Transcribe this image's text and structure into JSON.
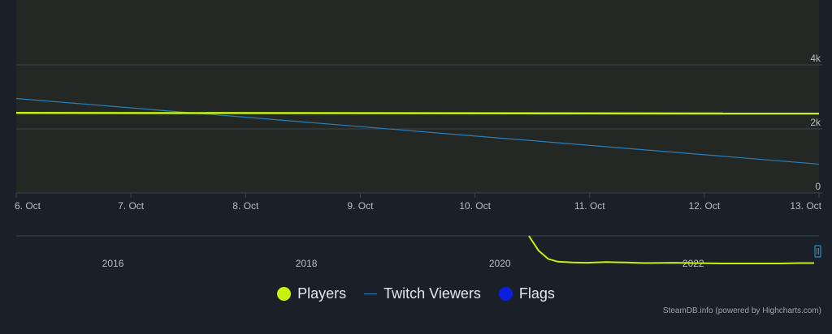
{
  "colors": {
    "background": "#1b2028",
    "plot_fill": "#232825",
    "grid": "#3a4350",
    "axis_text": "#b8bec8",
    "players": "#c6f20e",
    "twitch": "#2a7fb8",
    "flags": "#0a1fe0",
    "legend_text": "#e3e7ee",
    "credits_text": "#9aa3ae",
    "navigator_handle": "#1e8fd8"
  },
  "chart_data": [
    {
      "type": "line",
      "x": [
        "6. Oct",
        "7. Oct",
        "8. Oct",
        "9. Oct",
        "10. Oct",
        "11. Oct",
        "12. Oct",
        "13. Oct"
      ],
      "ylim": [
        0,
        4000
      ],
      "y_ticks": [
        0,
        2000,
        4000
      ],
      "y_tick_labels": [
        "0",
        "2k",
        "4k"
      ],
      "grid": true,
      "series": [
        {
          "name": "Players",
          "x_start": 0,
          "x_end": 7,
          "values_start": 2500,
          "values_end": 2480
        },
        {
          "name": "Twitch Viewers",
          "x_start": 0,
          "x_end": 7,
          "values_start": 2950,
          "values_end": 900
        }
      ]
    },
    {
      "type": "line",
      "role": "navigator",
      "x_range": [
        2015.0,
        2023.3
      ],
      "x_ticks": [
        2016,
        2018,
        2020,
        2022
      ],
      "x_tick_labels": [
        "2016",
        "2018",
        "2020",
        "2022"
      ],
      "series": [
        {
          "name": "Players",
          "x": [
            2020.3,
            2020.4,
            2020.5,
            2020.6,
            2020.75,
            2020.9,
            2021.1,
            2021.3,
            2021.5,
            2021.8,
            2022.0,
            2022.3,
            2022.6,
            2022.9,
            2023.1,
            2023.25
          ],
          "values": [
            100,
            58,
            34,
            26,
            24,
            23,
            25,
            24,
            22,
            23,
            22,
            21,
            21,
            21,
            22,
            22
          ]
        }
      ]
    }
  ],
  "legend": {
    "position": "bottom-center",
    "items": [
      {
        "label": "Players"
      },
      {
        "label": "Twitch Viewers"
      },
      {
        "label": "Flags"
      }
    ]
  },
  "credits": "SteamDB.info (powered by Highcharts.com)"
}
